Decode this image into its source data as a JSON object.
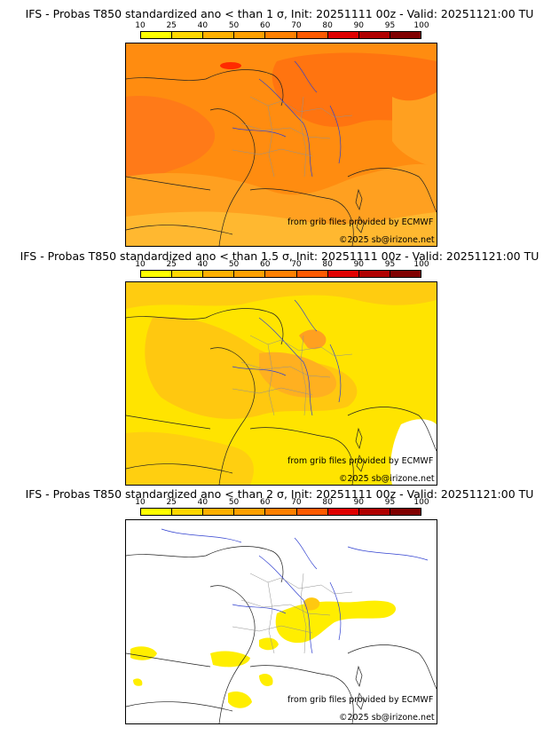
{
  "colorbar": {
    "ticks": [
      "10",
      "25",
      "40",
      "50",
      "60",
      "70",
      "80",
      "90",
      "95",
      "100"
    ],
    "colors": [
      "#ffff00",
      "#ffd700",
      "#ffb000",
      "#ffa000",
      "#ff8000",
      "#ff5a00",
      "#e00000",
      "#b00000",
      "#800000"
    ]
  },
  "panels": [
    {
      "title": "IFS - Probas T850  standardized ano < than 1 σ, Init: 20251111 00z - Valid: 20251121:00 TU",
      "threshold": "1 σ"
    },
    {
      "title": "IFS - Probas T850  standardized ano < than 1.5 σ, Init: 20251111 00z - Valid: 20251121:00 TU",
      "threshold": "1.5 σ"
    },
    {
      "title": "IFS - Probas T850  standardized ano < than 2 σ, Init: 20251111 00z - Valid: 20251121:00 TU",
      "threshold": "2 σ"
    }
  ],
  "credits": {
    "source": "from grib files provided by ECMWF",
    "copyright": "©2025 sb@irizone.net"
  }
}
